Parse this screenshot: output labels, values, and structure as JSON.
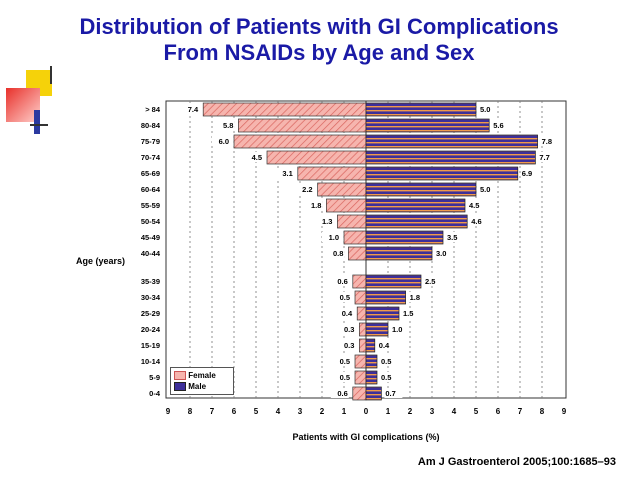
{
  "slide": {
    "title_line1": "Distribution of Patients with GI Complications",
    "title_line2": "From NSAIDs  by Age and Sex",
    "citation": "Am J Gastroenterol 2005;100:1685–93",
    "accent_colors": {
      "title": "#1a1aa6",
      "deco_yellow": "#f5d20a",
      "deco_red": "#e8302a",
      "deco_blue": "#2b3aa0"
    }
  },
  "chart_data": {
    "type": "bar",
    "orientation": "horizontal-population-pyramid",
    "categories": [
      "> 84",
      "80-84",
      "75-79",
      "70-74",
      "65-69",
      "60-64",
      "55-59",
      "50-54",
      "45-49",
      "40-44",
      "35-39",
      "30-34",
      "25-29",
      "20-24",
      "15-19",
      "10-14",
      "5-9",
      "0-4"
    ],
    "series": [
      {
        "name": "Female",
        "side": "left",
        "color": "#f4a6a0",
        "values": [
          7.4,
          5.8,
          6.0,
          4.5,
          3.1,
          2.2,
          1.8,
          1.3,
          1.0,
          0.8,
          0.6,
          0.5,
          0.4,
          0.3,
          0.3,
          0.5,
          0.5,
          0.6
        ],
        "labels": [
          "7.4",
          "5.8",
          "6.0",
          "4.5",
          "3.1",
          "2.2",
          "1.8",
          "1.3",
          "1.0",
          "0.8",
          "0.6",
          "0.5",
          "0.4",
          "0.3",
          "0.3",
          "0.5",
          "0.5",
          "0.6"
        ]
      },
      {
        "name": "Male",
        "side": "right",
        "color": "#4a3aa0",
        "values": [
          5.0,
          5.6,
          7.8,
          7.7,
          6.9,
          5.0,
          4.5,
          4.6,
          3.5,
          3.0,
          2.5,
          1.8,
          1.5,
          1.0,
          0.4,
          0.5,
          0.5,
          0.7
        ],
        "labels": [
          "5.0",
          "5.6",
          "7.8",
          "7.7",
          "6.9",
          "5.0",
          "4.5",
          "4.6",
          "3.5",
          "3.0",
          "2.5",
          "1.8",
          "1.5",
          "1.0",
          "0.4",
          "0.5",
          "0.5",
          "0.7"
        ]
      }
    ],
    "xticks": [
      "9",
      "8",
      "7",
      "6",
      "5",
      "4",
      "3",
      "2",
      "1",
      "0",
      "1",
      "2",
      "3",
      "4",
      "5",
      "6",
      "7",
      "8",
      "9"
    ],
    "xlim": [
      -9,
      9
    ],
    "xlabel": "Patients with GI complications (%)",
    "ylabel": "Age (years)",
    "grid": "vertical dashed",
    "legend_position": "bottom-left"
  }
}
